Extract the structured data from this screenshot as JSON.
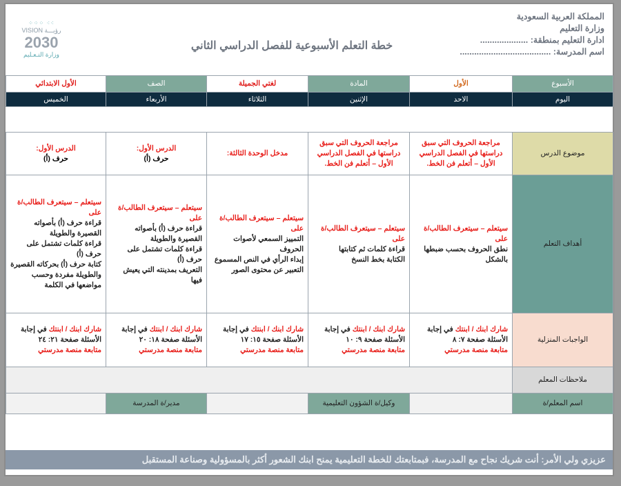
{
  "header": {
    "lines": [
      "المملكة العربية السعودية",
      "وزارة التعليم",
      "ادارة التعليم بمنطقة: ....................",
      "اسم المدرسة: ......................................"
    ],
    "title": "خطة التعلم الأسبوعية للفصل الدراسي الثاني",
    "logo": {
      "vision": "VISION رؤيـــة",
      "year": "2030",
      "ministry": "وزارة التـعـليم"
    }
  },
  "info": {
    "week_label": "الأسبوع",
    "week_value": "الأول",
    "subject_label": "المادة",
    "subject_value": "لغتي الجميلة",
    "class_label": "الصف",
    "class_value": "الأول الابتدائي"
  },
  "days": [
    "اليوم",
    "الاحد",
    "الإثنين",
    "الثلاثاء",
    "الأربعاء",
    "الخميس"
  ],
  "topic": {
    "label": "موضوع الدرس",
    "cells": [
      {
        "red": "مراجعة الحروف التي سبق دراستها في الفصل الدراسي الأول – أتعلم فن الخط.",
        "black": ""
      },
      {
        "red": "مراجعة الحروف التي سبق دراستها في الفصل الدراسي الأول – أتعلم فن الخط.",
        "black": ""
      },
      {
        "red": "مدخل الوحدة الثالثة:",
        "black": ""
      },
      {
        "red": "الدرس الأول:",
        "black": "حرف (أ)"
      },
      {
        "red": "الدرس الأول:",
        "black": "حرف (أ)"
      }
    ]
  },
  "goals": {
    "label": "أهداف التعلم",
    "cells": [
      {
        "red": "سيتعلم – سيتعرف الطالب/ة على",
        "items": [
          "نطق الحروف بحسب ضبطها بالشكل"
        ]
      },
      {
        "red": "سيتعلم – سيتعرف الطالب/ة على",
        "items": [
          "قراءة كلمات ثم كتابتها",
          "الكتابة بخط النسخ"
        ]
      },
      {
        "red": "سيتعلم – سيتعرف الطالب/ة على",
        "items": [
          "التمييز السمعي لأصوات الحروف",
          "إبداء الرأي في النص المسموع",
          "التعبير عن محتوى الصور"
        ]
      },
      {
        "red": "سيتعلم – سيتعرف الطالب/ة على",
        "items": [
          "قراءة حرف (أ) بأصواته القصيرة والطويلة",
          "قراءة كلمات تشتمل على حرف (أ)",
          "التعريف بمدينته التي يعيش فيها"
        ]
      },
      {
        "red": "سيتعلم – سيتعرف الطالب/ة على",
        "items": [
          "قراءة حرف (أ) بأصواته القصيرة والطويلة",
          "قراءة كلمات تشتمل على حرف (أ)",
          "كتابة حرف (أ) بحركاته القصيرة والطويلة مفردة وحسب مواضعها في الكلمة"
        ]
      }
    ]
  },
  "homework": {
    "label": "الواجبات المنزلية",
    "share": "شارك ابنك / ابنتك",
    "in_answer": "في إجابة",
    "follow": "متابعة منصة مدرستي",
    "pages": [
      "الأسئلة صفحة ٧: ٨",
      "الأسئلة صفحة ٩: ١٠",
      "الأسئلة صفحة ١٥: ١٧",
      "الأسئلة صفحة ١٨: ٢٠",
      "الأسئلة صفحة ٢١: ٢٤"
    ]
  },
  "notes_label": "ملاحظات المعلم",
  "signatures": {
    "teacher": "اسم المعلم/ة",
    "deputy": "وكيل/ة الشؤون التعليمية",
    "principal": "مدير/ة المدرسة"
  },
  "footer": "عزيزي ولي الأمر: أنت شريك نجاح مع المدرسة، فبمتابعتك للخطة التعليمية يمنح ابنك الشعور أكثر بالمسؤولية وصناعة المستقبل",
  "colors": {
    "green": "#7fa89a",
    "navy": "#0f2c3f",
    "topic_bg": "#dedba8",
    "goals_bg": "#6b9e96",
    "hw_bg": "#f8dccf",
    "red": "#e0201e"
  }
}
